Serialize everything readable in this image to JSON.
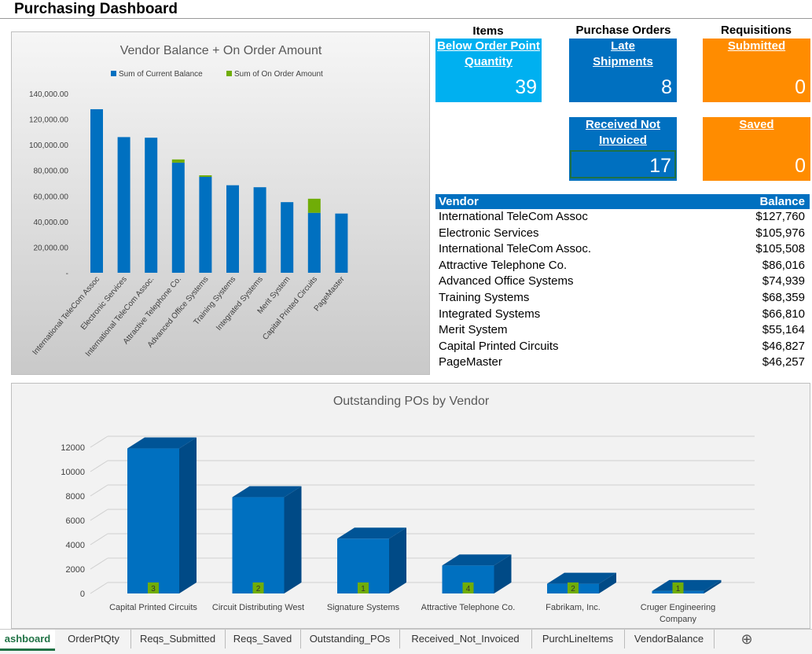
{
  "page": {
    "title": "Purchasing Dashboard"
  },
  "sections": {
    "items": "Items",
    "purchase_orders": "Purchase Orders",
    "requisitions": "Requisitions"
  },
  "kpis": {
    "below_order_point": {
      "label": "Below Order Point Quantity",
      "value": "39",
      "color": "#00b0f0"
    },
    "late_shipments": {
      "label": "Late Shipments",
      "value": "8",
      "color": "#0070c0"
    },
    "submitted": {
      "label": "Submitted",
      "value": "0",
      "color": "#ff8c00"
    },
    "received_not_invoiced": {
      "label": "Received Not Invoiced",
      "value": "17",
      "color": "#0070c0"
    },
    "saved": {
      "label": "Saved",
      "value": "0",
      "color": "#ff8c00"
    }
  },
  "vendor_table": {
    "headers": [
      "Vendor",
      "Balance"
    ],
    "rows": [
      [
        "International TeleCom Assoc",
        "$127,760"
      ],
      [
        "Electronic Services",
        "$105,976"
      ],
      [
        "International TeleCom Assoc.",
        "$105,508"
      ],
      [
        "Attractive Telephone Co.",
        "$86,016"
      ],
      [
        "Advanced Office Systems",
        "$74,939"
      ],
      [
        "Training Systems",
        "$68,359"
      ],
      [
        "Integrated Systems",
        "$66,810"
      ],
      [
        "Merit System",
        "$55,164"
      ],
      [
        "Capital Printed Circuits",
        "$46,827"
      ],
      [
        "PageMaster",
        "$46,257"
      ]
    ]
  },
  "chart_data": [
    {
      "type": "bar",
      "title": "Vendor Balance + On Order Amount",
      "stacked": true,
      "categories": [
        "International TeleCom Assoc",
        "Electronic Services",
        "International TeleCom Assoc.",
        "Attractive Telephone Co.",
        "Advanced Office Systems",
        "Training Systems",
        "Integrated Systems",
        "Merit System",
        "Capital Printed Circuits",
        "PageMaster"
      ],
      "series": [
        {
          "name": "Sum of Current Balance",
          "color": "#0070c0",
          "values": [
            127760,
            105976,
            105508,
            86016,
            74939,
            68359,
            66810,
            55164,
            46827,
            46257
          ]
        },
        {
          "name": "Sum of On Order Amount",
          "color": "#70ad07",
          "values": [
            0,
            0,
            0,
            2500,
            1200,
            0,
            0,
            0,
            11000,
            0
          ]
        }
      ],
      "yticks": [
        "-",
        "20,000.00",
        "40,000.00",
        "60,000.00",
        "80,000.00",
        "100,000.00",
        "120,000.00",
        "140,000.00"
      ],
      "ylim": [
        0,
        140000
      ],
      "legend": "top"
    },
    {
      "type": "bar",
      "title": "Outstanding POs by Vendor",
      "categories": [
        "Capital Printed Circuits",
        "Circuit Distributing West",
        "Signature Systems",
        "Attractive Telephone Co.",
        "Fabrikam, Inc.",
        "Cruger Engineering Company"
      ],
      "values": [
        11900,
        7900,
        4500,
        2300,
        800,
        200
      ],
      "labels": [
        "3",
        "2",
        "1",
        "4",
        "2",
        "1"
      ],
      "yticks": [
        "0",
        "2000",
        "4000",
        "6000",
        "8000",
        "10000",
        "12000"
      ],
      "ylim": [
        0,
        12000
      ],
      "color": "#0070c0"
    }
  ],
  "tabs": [
    "ashboard",
    "OrderPtQty",
    "Reqs_Submitted",
    "Reqs_Saved",
    "Outstanding_POs",
    "Received_Not_Invoiced",
    "PurchLineItems",
    "VendorBalance"
  ],
  "add_sheet_icon": "plus-circle-icon"
}
